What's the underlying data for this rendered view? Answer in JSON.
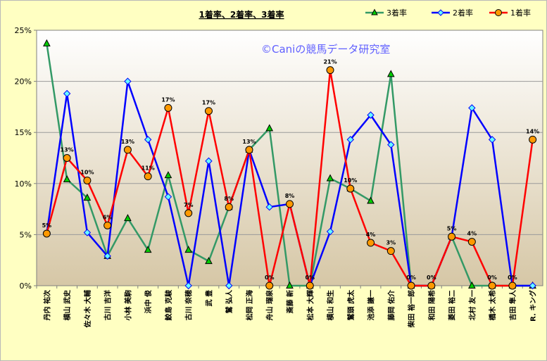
{
  "colors": {
    "3着率": "#339966",
    "2着率": "#0000ff",
    "1着率": "#ff0000",
    "marker_fill_1": "#ff9900",
    "marker_fill_2": "#66ffff",
    "marker_fill_3": "#00cc00"
  },
  "chart_data": {
    "type": "line",
    "title": "1着率、2着率、3着率",
    "watermark": "©Caniの競馬データ研究室",
    "ylim": [
      0,
      25
    ],
    "y_ticks": [
      "0%",
      "5%",
      "10%",
      "15%",
      "20%",
      "25%"
    ],
    "legend_position": "top-right",
    "categories": [
      "丹内 祐次",
      "横山 武史",
      "佐々木 大輔",
      "古川 吉洋",
      "小林 美駒",
      "浜中 俊",
      "鮫島 克駿",
      "古川 奈穂",
      "武 豊",
      "鷲 弘人",
      "松岡 正海",
      "舟山 瑠泉",
      "斎藤 新",
      "松本 大輝",
      "横山 和生",
      "鷲頭 虎太",
      "池添 謙一",
      "藤岡 佑介",
      "柴田 裕一郎",
      "和田 陽希",
      "菱田 裕二",
      "北村 友一",
      "橋木 太希",
      "吉田 隼人",
      "R. キング"
    ],
    "series": [
      {
        "name": "3着率",
        "values": [
          23.7,
          10.4,
          8.6,
          2.9,
          6.6,
          3.5,
          10.8,
          3.5,
          2.4,
          7.7,
          13.3,
          15.4,
          0,
          0,
          10.5,
          9.5,
          8.3,
          20.7,
          0,
          0,
          4.8,
          0,
          0,
          0,
          0
        ]
      },
      {
        "name": "2着率",
        "values": [
          5.1,
          18.8,
          5.2,
          2.9,
          20.0,
          14.3,
          8.7,
          0,
          12.2,
          0,
          13.3,
          7.7,
          8.0,
          0,
          5.3,
          14.3,
          16.7,
          13.8,
          0,
          0,
          4.8,
          17.4,
          14.3,
          0,
          0
        ]
      },
      {
        "name": "1着率",
        "values": [
          5.1,
          12.5,
          10.3,
          5.9,
          13.3,
          10.7,
          17.4,
          7.1,
          17.1,
          7.7,
          13.3,
          0,
          8.0,
          0,
          21.1,
          9.5,
          4.2,
          3.4,
          0,
          0,
          4.8,
          4.3,
          0,
          0,
          14.3
        ]
      }
    ],
    "data_labels_1着率": [
      "5%",
      "13%",
      "10%",
      "6%",
      "13%",
      "11%",
      "17%",
      "7%",
      "17%",
      "8%",
      "13%",
      "0%",
      "8%",
      "0%",
      "21%",
      "10%",
      "4%",
      "3%",
      "0%",
      "0%",
      "5%",
      "4%",
      "0%",
      "0%",
      "14%"
    ]
  }
}
